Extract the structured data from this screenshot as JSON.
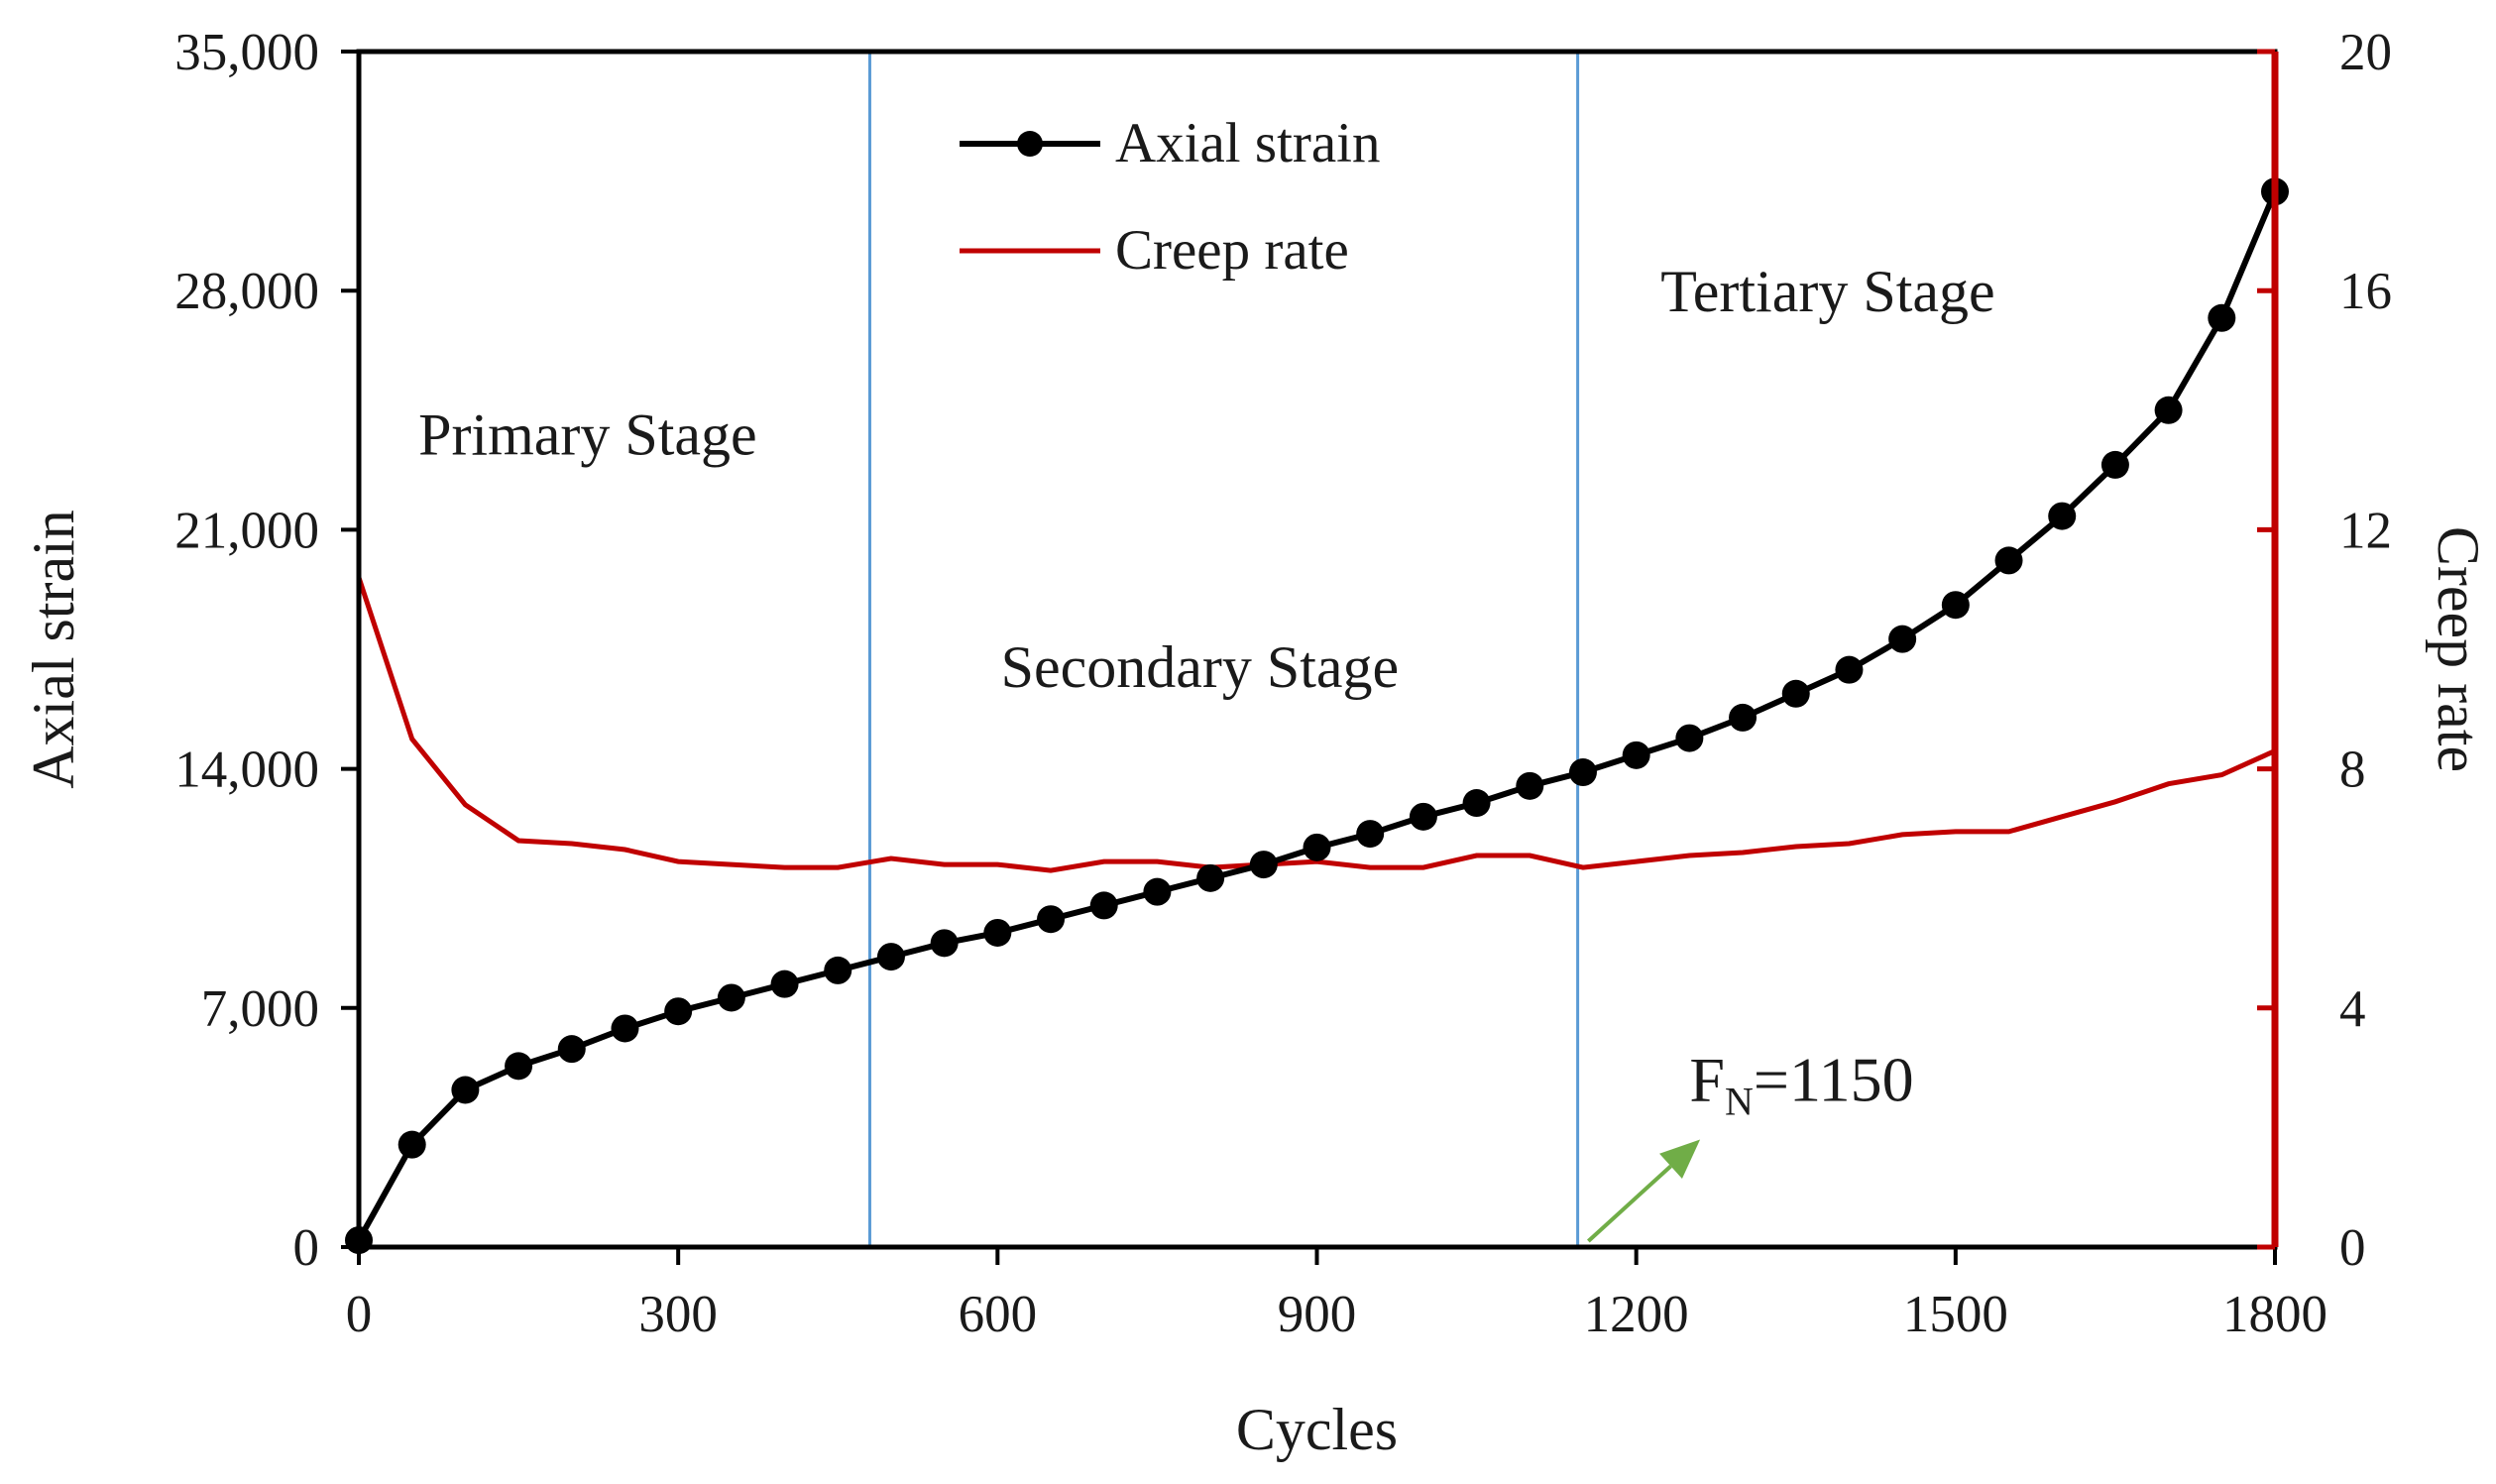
{
  "chart_data": {
    "type": "line",
    "title": "",
    "xlabel": "Cycles",
    "ylabel": "Axial strain",
    "y2label": "Creep rate",
    "xlim": [
      0,
      1800
    ],
    "ylim": [
      0,
      35000
    ],
    "y2lim": [
      0,
      20
    ],
    "x_ticks": [
      "0",
      "300",
      "600",
      "900",
      "1200",
      "1500",
      "1800"
    ],
    "y_ticks": [
      "0",
      "7,000",
      "14,000",
      "21,000",
      "28,000",
      "35,000"
    ],
    "y2_ticks": [
      "0",
      "4",
      "8",
      "12",
      "16",
      "20"
    ],
    "grid": false,
    "legend_position": "top-center",
    "series": [
      {
        "name": "Axial strain",
        "axis": "left",
        "color": "#000000",
        "marker": "circle",
        "x": [
          0,
          50,
          100,
          150,
          200,
          250,
          300,
          350,
          400,
          450,
          500,
          550,
          600,
          650,
          700,
          750,
          800,
          850,
          900,
          950,
          1000,
          1050,
          1100,
          1150,
          1200,
          1250,
          1300,
          1350,
          1400,
          1450,
          1500,
          1550,
          1600,
          1650,
          1700,
          1750,
          1800
        ],
        "values": [
          200,
          3000,
          4600,
          5300,
          5800,
          6400,
          6900,
          7300,
          7700,
          8100,
          8500,
          8900,
          9200,
          9600,
          10000,
          10400,
          10800,
          11200,
          11700,
          12100,
          12600,
          13000,
          13500,
          13900,
          14400,
          14900,
          15500,
          16200,
          16900,
          17800,
          18800,
          20100,
          21400,
          22900,
          24500,
          27200,
          30900
        ]
      },
      {
        "name": "Creep rate",
        "axis": "right",
        "color": "#c00000",
        "marker": "none",
        "x": [
          0,
          50,
          100,
          150,
          200,
          250,
          300,
          350,
          400,
          450,
          500,
          550,
          600,
          650,
          700,
          750,
          800,
          850,
          900,
          950,
          1000,
          1050,
          1100,
          1150,
          1200,
          1250,
          1300,
          1350,
          1400,
          1450,
          1500,
          1550,
          1600,
          1650,
          1700,
          1750,
          1800
        ],
        "values": [
          11.2,
          8.5,
          7.4,
          6.8,
          6.75,
          6.65,
          6.45,
          6.4,
          6.35,
          6.35,
          6.5,
          6.4,
          6.4,
          6.3,
          6.45,
          6.45,
          6.35,
          6.4,
          6.45,
          6.35,
          6.35,
          6.55,
          6.55,
          6.35,
          6.45,
          6.55,
          6.6,
          6.7,
          6.75,
          6.9,
          6.95,
          6.95,
          7.2,
          7.45,
          7.75,
          7.9,
          8.3
        ]
      }
    ],
    "stage_dividers": [
      480,
      1145
    ],
    "annotations": [
      {
        "text": "Primary Stage",
        "x": 215,
        "y": 23200,
        "axis": "left"
      },
      {
        "text": "Secondary Stage",
        "x": 790,
        "y": 16400,
        "axis": "left"
      },
      {
        "text": "Tertiary Stage",
        "x": 1380,
        "y": 27400,
        "axis": "left"
      }
    ],
    "arrow": {
      "label_main": "F",
      "label_sub": "N",
      "label_rest": "=1150",
      "from_x": 1155,
      "from_y": 0.1,
      "to_x": 1260,
      "to_y": 1.8,
      "label_x": 1250,
      "label_y": 2.45,
      "axis": "right",
      "color": "#70ad47"
    },
    "divider_color": "#5b9bd5",
    "right_axis_color": "#c00000"
  }
}
